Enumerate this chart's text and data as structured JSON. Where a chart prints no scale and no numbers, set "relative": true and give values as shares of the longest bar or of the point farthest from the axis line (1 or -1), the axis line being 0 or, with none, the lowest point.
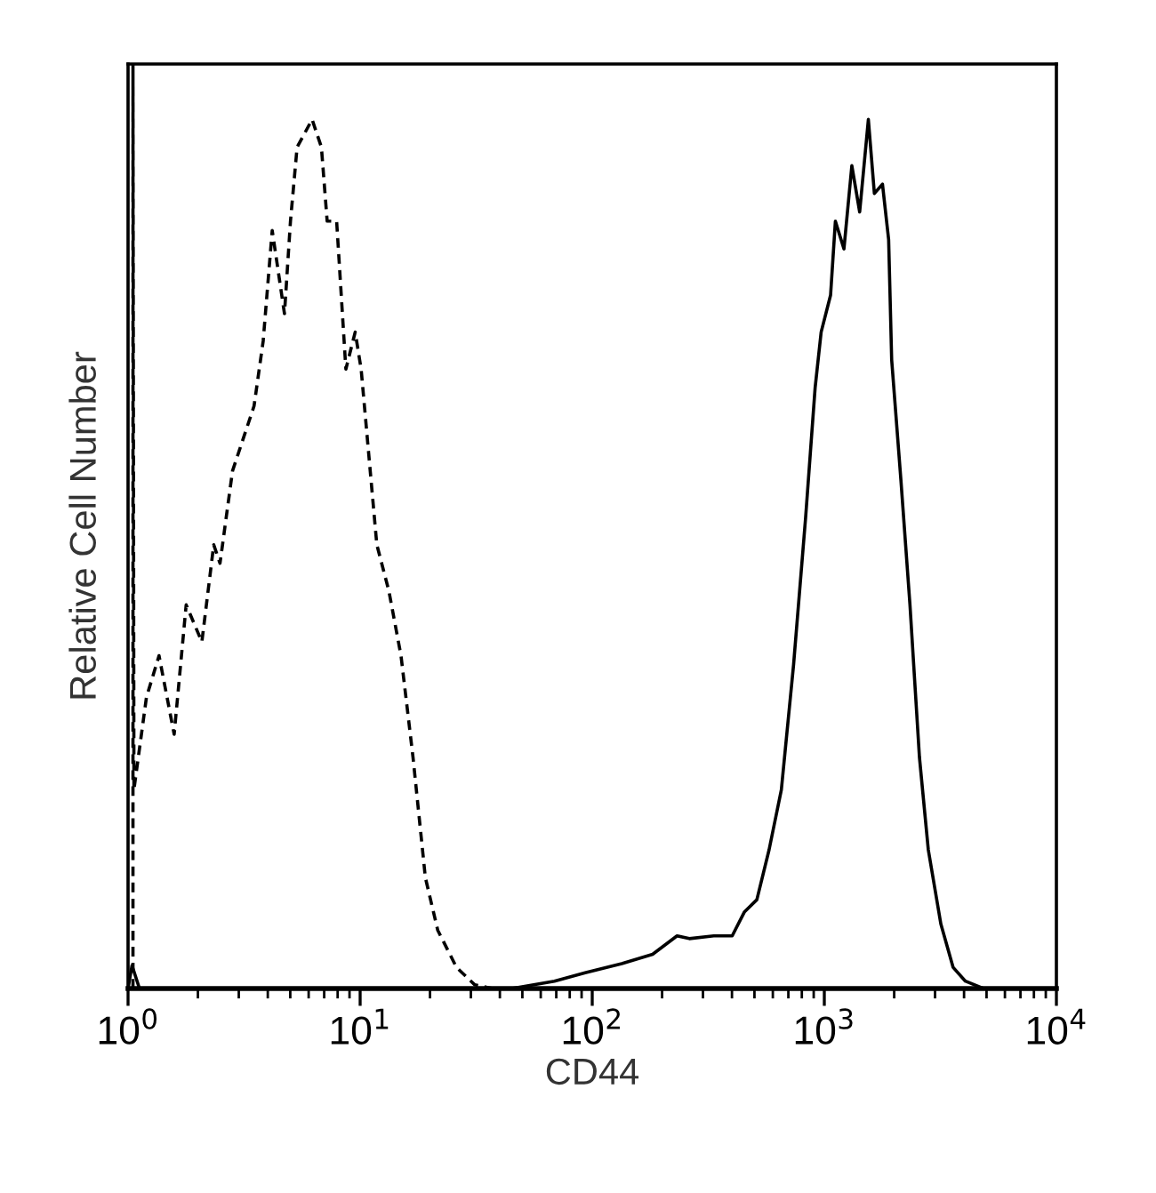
{
  "chart_data": {
    "type": "line",
    "relative": true,
    "log": "x",
    "grid": false,
    "legend": false,
    "marker": "none",
    "xlabel": "CD44",
    "ylabel": "Relative Cell Number",
    "xlim": [
      1,
      10000
    ],
    "xticks": [
      {
        "value": 1,
        "label": "10$^{0}$"
      },
      {
        "value": 10,
        "label": "10$^{1}$"
      },
      {
        "value": 100,
        "label": "10$^{2}$"
      },
      {
        "value": 1000,
        "label": "10$^{3}$"
      },
      {
        "value": 10000,
        "label": "10$^{4}$"
      }
    ],
    "tick_labels": "x",
    "series": [
      {
        "color": "#000000",
        "line_style": "dashed",
        "x": [
          1.05,
          1.05,
          1.06,
          1.2,
          1.36,
          1.58,
          1.78,
          2.08,
          2.34,
          2.49,
          2.82,
          3.49,
          3.82,
          4.18,
          4.72,
          5.01,
          5.35,
          6.21,
          6.81,
          7.21,
          7.92,
          8.68,
          9.52,
          10.1,
          11.8,
          13.3,
          15.0,
          16.9,
          19.1,
          21.6,
          26.0,
          31.2,
          37.2,
          10000
        ],
        "values": [
          0,
          1.0,
          0.215,
          0.315,
          0.36,
          0.275,
          0.415,
          0.375,
          0.48,
          0.46,
          0.56,
          0.63,
          0.7,
          0.82,
          0.73,
          0.83,
          0.91,
          0.94,
          0.91,
          0.83,
          0.83,
          0.67,
          0.71,
          0.67,
          0.48,
          0.43,
          0.36,
          0.25,
          0.12,
          0.063,
          0.023,
          0.004,
          0,
          0
        ]
      },
      {
        "color": "#000000",
        "line_style": "solid",
        "x": [
          1.0,
          1.04,
          1.12,
          45,
          68.7,
          93.2,
          134,
          182,
          232,
          262,
          334,
          401,
          453,
          512,
          578,
          653,
          737,
          831,
          913,
          969,
          1064,
          1116,
          1215,
          1314,
          1420,
          1548,
          1643,
          1781,
          1893,
          1951,
          2138,
          2339,
          2570,
          2806,
          3177,
          3587,
          4054,
          4850,
          10000
        ],
        "values": [
          0,
          0.025,
          0,
          0,
          0.008,
          0.017,
          0.027,
          0.037,
          0.057,
          0.054,
          0.057,
          0.057,
          0.083,
          0.096,
          0.15,
          0.215,
          0.35,
          0.51,
          0.65,
          0.71,
          0.75,
          0.83,
          0.8,
          0.89,
          0.84,
          0.94,
          0.86,
          0.87,
          0.81,
          0.68,
          0.55,
          0.415,
          0.25,
          0.15,
          0.07,
          0.023,
          0.008,
          0,
          0
        ]
      }
    ]
  }
}
